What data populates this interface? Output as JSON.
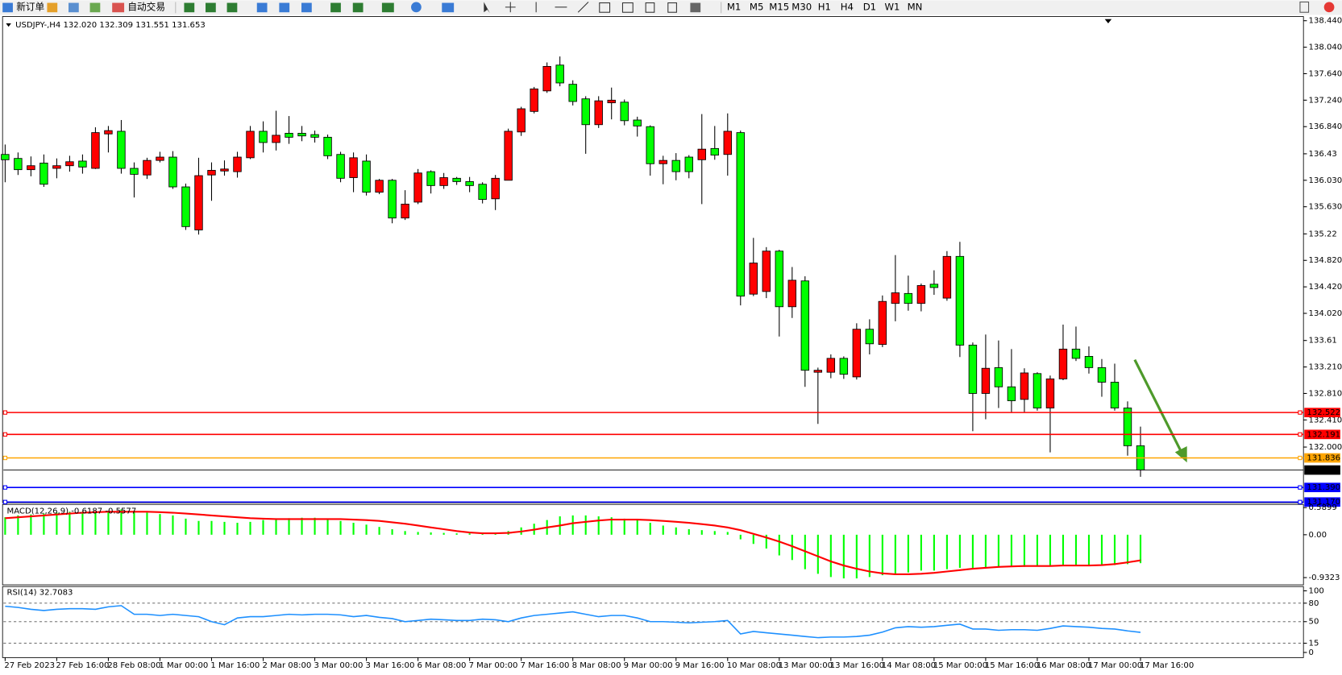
{
  "toolbar": {
    "new_order": "新订单",
    "auto_trade": "自动交易",
    "timeframes": [
      "M1",
      "M5",
      "M15",
      "M30",
      "H1",
      "H4",
      "D1",
      "W1",
      "MN"
    ]
  },
  "chart_data": [
    {
      "type": "candlestick",
      "title": "USDJPY-,H4  132.020 132.309 131.551 131.653",
      "categories": [
        "27 Feb 2023",
        null,
        null,
        null,
        "27 Feb 16:00",
        null,
        null,
        null,
        "28 Feb 08:00",
        null,
        null,
        null,
        "1 Mar 00:00",
        null,
        null,
        null,
        "1 Mar 16:00",
        null,
        null,
        null,
        "2 Mar 08:00",
        null,
        null,
        null,
        "3 Mar 00:00",
        null,
        null,
        null,
        "3 Mar 16:00",
        null,
        null,
        null,
        "6 Mar 08:00",
        null,
        null,
        null,
        "7 Mar 00:00",
        null,
        null,
        null,
        "7 Mar 16:00",
        null,
        null,
        null,
        "8 Mar 08:00",
        null,
        null,
        null,
        "9 Mar 00:00",
        null,
        null,
        null,
        "9 Mar 16:00",
        null,
        null,
        null,
        "10 Mar 08:00",
        null,
        null,
        null,
        "13 Mar 00:00",
        null,
        null,
        null,
        "13 Mar 16:00",
        null,
        null,
        null,
        "14 Mar 08:00",
        null,
        null,
        null,
        "15 Mar 00:00",
        null,
        null,
        null,
        "15 Mar 16:00",
        null,
        null,
        null,
        "16 Mar 08:00",
        null,
        null,
        null,
        "17 Mar 00:00",
        null,
        null,
        null,
        "17 Mar 16:00"
      ],
      "open": [
        136.42,
        136.36,
        136.19,
        136.29,
        136.21,
        136.25,
        136.32,
        136.21,
        136.73,
        136.77,
        136.21,
        136.11,
        136.33,
        136.38,
        135.93,
        135.28,
        136.11,
        136.17,
        136.16,
        136.37,
        136.77,
        136.6,
        136.74,
        136.74,
        136.72,
        136.68,
        136.42,
        136.07,
        136.32,
        135.85,
        136.03,
        135.46,
        135.7,
        136.16,
        135.95,
        136.06,
        136.01,
        135.97,
        135.75,
        136.03,
        136.76,
        137.07,
        137.38,
        137.77,
        137.48,
        137.26,
        136.87,
        137.2,
        137.21,
        136.94,
        136.84,
        136.28,
        136.33,
        136.38,
        136.34,
        136.51,
        136.42,
        136.75,
        134.31,
        134.35,
        134.96,
        134.12,
        134.51,
        133.13,
        133.13,
        133.34,
        133.06,
        133.78,
        133.55,
        134.17,
        134.32,
        134.17,
        134.46,
        134.25,
        134.88,
        133.54,
        132.81,
        133.2,
        132.91,
        132.72,
        133.11,
        132.59,
        133.03,
        133.48,
        133.37,
        133.2,
        132.98,
        132.59,
        132.02
      ],
      "high": [
        136.57,
        136.45,
        136.39,
        136.42,
        136.36,
        136.4,
        136.42,
        136.83,
        136.85,
        136.94,
        136.3,
        136.37,
        136.46,
        136.47,
        135.98,
        136.37,
        136.3,
        136.33,
        136.46,
        136.85,
        136.92,
        137.08,
        137.0,
        136.85,
        136.78,
        136.72,
        136.46,
        136.45,
        136.42,
        136.05,
        136.05,
        135.88,
        136.2,
        136.18,
        136.14,
        136.08,
        136.08,
        136.0,
        136.11,
        136.81,
        137.14,
        137.44,
        137.81,
        137.9,
        137.54,
        137.3,
        137.3,
        137.43,
        137.25,
        136.99,
        136.86,
        136.4,
        136.44,
        136.41,
        137.03,
        136.85,
        137.04,
        136.78,
        135.16,
        135.02,
        134.98,
        134.72,
        134.58,
        133.2,
        133.4,
        133.37,
        133.87,
        133.93,
        134.29,
        134.9,
        134.59,
        134.47,
        134.67,
        134.96,
        135.1,
        133.58,
        133.7,
        133.61,
        133.48,
        133.19,
        133.13,
        133.08,
        133.85,
        133.82,
        133.52,
        133.33,
        133.26,
        132.69,
        132.309
      ],
      "low": [
        136.0,
        136.11,
        136.09,
        135.93,
        136.06,
        136.16,
        136.13,
        136.2,
        136.45,
        136.13,
        135.77,
        136.05,
        136.3,
        135.9,
        135.28,
        135.21,
        135.72,
        136.1,
        136.07,
        136.35,
        136.45,
        136.48,
        136.58,
        136.62,
        136.6,
        136.35,
        136.0,
        135.85,
        135.8,
        135.82,
        135.38,
        135.43,
        135.67,
        135.83,
        135.9,
        135.96,
        135.85,
        135.68,
        135.58,
        136.03,
        136.7,
        137.04,
        137.35,
        137.45,
        137.16,
        136.43,
        136.82,
        136.95,
        136.86,
        136.69,
        136.1,
        135.97,
        136.03,
        136.06,
        135.67,
        136.34,
        136.1,
        134.14,
        134.28,
        134.25,
        133.67,
        133.95,
        132.91,
        132.35,
        133.04,
        133.03,
        133.02,
        133.4,
        133.51,
        133.9,
        134.06,
        134.05,
        134.3,
        134.21,
        133.36,
        132.24,
        132.42,
        132.59,
        132.53,
        132.53,
        132.55,
        131.92,
        133.01,
        133.3,
        133.11,
        132.76,
        132.55,
        131.87,
        131.551
      ],
      "close": [
        136.34,
        136.19,
        136.25,
        135.97,
        136.25,
        136.31,
        136.23,
        136.75,
        136.78,
        136.21,
        136.12,
        136.33,
        136.38,
        135.93,
        135.33,
        136.1,
        136.18,
        136.2,
        136.38,
        136.77,
        136.6,
        136.71,
        136.68,
        136.7,
        136.68,
        136.4,
        136.06,
        136.37,
        135.85,
        136.03,
        135.46,
        135.67,
        136.14,
        135.95,
        136.07,
        136.01,
        135.95,
        135.74,
        136.06,
        136.77,
        137.11,
        137.41,
        137.75,
        137.5,
        137.22,
        136.87,
        137.23,
        137.24,
        136.93,
        136.85,
        136.28,
        136.33,
        136.16,
        136.16,
        136.5,
        136.41,
        136.77,
        134.28,
        134.78,
        134.96,
        134.12,
        134.52,
        133.16,
        133.16,
        133.34,
        133.1,
        133.78,
        133.56,
        134.2,
        134.33,
        134.17,
        134.44,
        134.41,
        134.88,
        133.54,
        132.81,
        133.19,
        132.91,
        132.7,
        133.12,
        132.59,
        133.03,
        133.48,
        133.34,
        133.2,
        132.98,
        132.59,
        132.02,
        131.653
      ],
      "up_color": "#ff0000",
      "down_color": "#00ff00",
      "ylim": [
        131.16,
        138.49
      ],
      "yticks": [
        {
          "value": 138.44,
          "label": "138.440"
        },
        {
          "value": 138.04,
          "label": "138.040"
        },
        {
          "value": 137.64,
          "label": "137.640"
        },
        {
          "value": 137.24,
          "label": "137.240"
        },
        {
          "value": 136.84,
          "label": "136.840"
        },
        136.43,
        {
          "value": 136.03,
          "label": "136.030"
        },
        {
          "value": 135.63,
          "label": "135.630"
        },
        135.22,
        {
          "value": 134.82,
          "label": "134.820"
        },
        {
          "value": 134.42,
          "label": "134.420"
        },
        {
          "value": 134.02,
          "label": "134.020"
        },
        133.61,
        {
          "value": 133.21,
          "label": "133.210"
        },
        {
          "value": 132.81,
          "label": "132.810"
        },
        {
          "value": 132.41,
          "label": "132.410"
        },
        {
          "value": 132,
          "label": "132.000"
        }
      ],
      "hlines": [
        {
          "value": 132.522,
          "label": "132.522",
          "color": "#ff0000"
        },
        {
          "value": 132.191,
          "label": "132.191",
          "color": "#ff0000"
        },
        {
          "value": 131.836,
          "label": "131.836",
          "color": "#ffa500"
        },
        {
          "value": 131.39,
          "label": "131.390",
          "color": "#0000ff"
        },
        {
          "value": 131.17,
          "label": "131.170",
          "color": "#0000ff"
        }
      ],
      "current_price": {
        "value": 131.653,
        "label": "131.653",
        "color": "#000000"
      }
    },
    {
      "type": "macd",
      "title": "MACD(12,26,9) -0.6187 -0.5577",
      "histogram": {
        "color": "#00ff00",
        "values": [
          0.38,
          0.42,
          0.44,
          0.46,
          0.48,
          0.5,
          0.5,
          0.5,
          0.52,
          0.55,
          0.52,
          0.48,
          0.45,
          0.42,
          0.35,
          0.3,
          0.3,
          0.28,
          0.26,
          0.28,
          0.32,
          0.34,
          0.36,
          0.37,
          0.37,
          0.35,
          0.3,
          0.26,
          0.22,
          0.17,
          0.12,
          0.08,
          0.06,
          0.05,
          0.04,
          0.03,
          0.03,
          0.02,
          0.02,
          0.08,
          0.16,
          0.24,
          0.32,
          0.4,
          0.42,
          0.42,
          0.4,
          0.38,
          0.35,
          0.32,
          0.26,
          0.2,
          0.16,
          0.12,
          0.1,
          0.08,
          0.06,
          -0.1,
          -0.2,
          -0.3,
          -0.45,
          -0.55,
          -0.75,
          -0.85,
          -0.92,
          -0.95,
          -0.95,
          -0.92,
          -0.88,
          -0.85,
          -0.82,
          -0.78,
          -0.78,
          -0.75,
          -0.72,
          -0.74,
          -0.72,
          -0.7,
          -0.7,
          -0.7,
          -0.68,
          -0.68,
          -0.68,
          -0.66,
          -0.66,
          -0.66,
          -0.66,
          -0.64,
          -0.6187
        ]
      },
      "signal": {
        "color": "#ff0000",
        "values": [
          0.36,
          0.38,
          0.4,
          0.42,
          0.44,
          0.46,
          0.48,
          0.49,
          0.5,
          0.5,
          0.5,
          0.5,
          0.49,
          0.48,
          0.46,
          0.44,
          0.42,
          0.4,
          0.38,
          0.36,
          0.35,
          0.34,
          0.34,
          0.34,
          0.34,
          0.34,
          0.34,
          0.33,
          0.32,
          0.3,
          0.27,
          0.24,
          0.2,
          0.16,
          0.12,
          0.08,
          0.05,
          0.03,
          0.03,
          0.04,
          0.07,
          0.11,
          0.16,
          0.2,
          0.25,
          0.28,
          0.31,
          0.33,
          0.33,
          0.33,
          0.32,
          0.3,
          0.28,
          0.26,
          0.23,
          0.2,
          0.16,
          0.1,
          0.02,
          -0.06,
          -0.15,
          -0.25,
          -0.36,
          -0.47,
          -0.58,
          -0.67,
          -0.74,
          -0.8,
          -0.84,
          -0.86,
          -0.86,
          -0.85,
          -0.83,
          -0.8,
          -0.77,
          -0.74,
          -0.72,
          -0.7,
          -0.69,
          -0.68,
          -0.68,
          -0.68,
          -0.67,
          -0.67,
          -0.67,
          -0.66,
          -0.64,
          -0.6,
          -0.5577
        ]
      },
      "ylim": [
        -1.09,
        0.66
      ],
      "yticks": [
        0.5899,
        {
          "value": 0,
          "label": "0.00"
        },
        -0.9323
      ]
    },
    {
      "type": "line",
      "title": "RSI(14) 32.7083",
      "series": [
        {
          "color": "#1e90ff",
          "values": [
            75,
            73,
            70,
            68,
            70,
            71,
            71,
            70,
            74,
            76,
            62,
            62,
            60,
            62,
            60,
            58,
            50,
            45,
            56,
            58,
            58,
            60,
            62,
            61,
            62,
            62,
            61,
            58,
            60,
            57,
            55,
            50,
            52,
            54,
            53,
            52,
            52,
            54,
            53,
            50,
            56,
            60,
            62,
            64,
            66,
            62,
            58,
            60,
            60,
            56,
            50,
            50,
            49,
            48,
            49,
            50,
            52,
            30,
            34,
            32,
            30,
            28,
            26,
            24,
            25,
            25,
            26,
            28,
            33,
            40,
            42,
            41,
            42,
            44,
            46,
            38,
            38,
            36,
            37,
            37,
            36,
            39,
            43,
            42,
            41,
            39,
            38,
            35,
            32.7083
          ]
        }
      ],
      "ylim": [
        0,
        100
      ],
      "yticks": [
        100,
        80,
        50,
        15,
        0
      ],
      "levels": [
        80,
        50,
        15
      ]
    }
  ]
}
